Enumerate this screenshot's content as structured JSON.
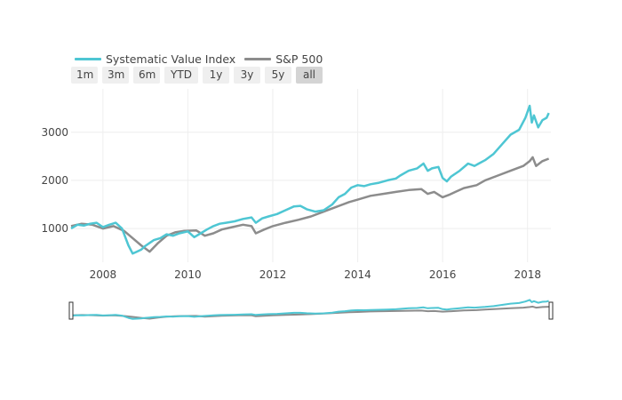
{
  "legend": {
    "items": [
      {
        "label": "Systematic Value Index",
        "color": "#4ec6d3"
      },
      {
        "label": "S&P 500",
        "color": "#8c8c8c"
      }
    ]
  },
  "range_selector": {
    "buttons": [
      "1m",
      "3m",
      "6m",
      "YTD",
      "1y",
      "3y",
      "5y",
      "all"
    ],
    "active": "all"
  },
  "chart_data": {
    "type": "line",
    "title": "",
    "xlabel": "",
    "ylabel": "",
    "xlim": [
      2007.25,
      2018.55
    ],
    "ylim": [
      300,
      3900
    ],
    "x_ticks": [
      "2008",
      "2010",
      "2012",
      "2014",
      "2016",
      "2018"
    ],
    "y_ticks": [
      "1000",
      "2000",
      "3000"
    ],
    "grid": true,
    "legend_position": "top-left",
    "range_slider": true,
    "series": [
      {
        "name": "Systematic Value Index",
        "color": "#4ec6d3",
        "x": [
          2007.25,
          2007.4,
          2007.55,
          2007.7,
          2007.85,
          2008.0,
          2008.15,
          2008.3,
          2008.45,
          2008.6,
          2008.7,
          2008.8,
          2008.9,
          2009.0,
          2009.1,
          2009.2,
          2009.35,
          2009.5,
          2009.65,
          2009.8,
          2010.0,
          2010.15,
          2010.3,
          2010.45,
          2010.6,
          2010.75,
          2010.9,
          2011.1,
          2011.3,
          2011.5,
          2011.6,
          2011.75,
          2011.9,
          2012.1,
          2012.3,
          2012.5,
          2012.65,
          2012.8,
          2013.0,
          2013.2,
          2013.4,
          2013.55,
          2013.7,
          2013.85,
          2014.0,
          2014.15,
          2014.3,
          2014.5,
          2014.7,
          2014.9,
          2015.0,
          2015.2,
          2015.4,
          2015.55,
          2015.65,
          2015.75,
          2015.9,
          2016.0,
          2016.1,
          2016.2,
          2016.4,
          2016.6,
          2016.75,
          2016.85,
          2017.0,
          2017.2,
          2017.4,
          2017.6,
          2017.8,
          2017.95,
          2018.05,
          2018.1,
          2018.15,
          2018.25,
          2018.35,
          2018.45,
          2018.5
        ],
        "values": [
          1000,
          1080,
          1060,
          1100,
          1120,
          1030,
          1080,
          1120,
          1000,
          650,
          480,
          520,
          560,
          640,
          700,
          760,
          800,
          880,
          850,
          900,
          940,
          820,
          900,
          980,
          1050,
          1100,
          1120,
          1150,
          1200,
          1230,
          1120,
          1210,
          1250,
          1300,
          1380,
          1460,
          1470,
          1400,
          1350,
          1380,
          1500,
          1650,
          1720,
          1850,
          1900,
          1880,
          1920,
          1950,
          2000,
          2040,
          2100,
          2200,
          2250,
          2350,
          2200,
          2250,
          2280,
          2050,
          1980,
          2080,
          2200,
          2350,
          2300,
          2350,
          2420,
          2550,
          2750,
          2950,
          3050,
          3300,
          3550,
          3200,
          3350,
          3100,
          3250,
          3300,
          3400
        ]
      },
      {
        "name": "S&P 500",
        "color": "#8c8c8c",
        "x": [
          2007.25,
          2007.5,
          2007.75,
          2008.0,
          2008.25,
          2008.5,
          2008.7,
          2008.9,
          2009.1,
          2009.3,
          2009.5,
          2009.7,
          2009.9,
          2010.2,
          2010.4,
          2010.6,
          2010.8,
          2011.0,
          2011.3,
          2011.5,
          2011.6,
          2011.8,
          2012.0,
          2012.3,
          2012.6,
          2012.9,
          2013.2,
          2013.5,
          2013.8,
          2014.0,
          2014.3,
          2014.6,
          2014.9,
          2015.2,
          2015.5,
          2015.65,
          2015.8,
          2016.0,
          2016.15,
          2016.3,
          2016.5,
          2016.8,
          2017.0,
          2017.3,
          2017.6,
          2017.9,
          2018.05,
          2018.12,
          2018.2,
          2018.35,
          2018.5
        ],
        "values": [
          1050,
          1100,
          1080,
          1000,
          1050,
          950,
          800,
          650,
          520,
          700,
          850,
          920,
          950,
          960,
          850,
          900,
          980,
          1020,
          1080,
          1050,
          900,
          980,
          1050,
          1120,
          1180,
          1250,
          1350,
          1450,
          1550,
          1600,
          1680,
          1720,
          1760,
          1800,
          1820,
          1720,
          1760,
          1650,
          1700,
          1760,
          1840,
          1900,
          2000,
          2100,
          2200,
          2300,
          2400,
          2480,
          2300,
          2400,
          2450
        ]
      }
    ]
  }
}
